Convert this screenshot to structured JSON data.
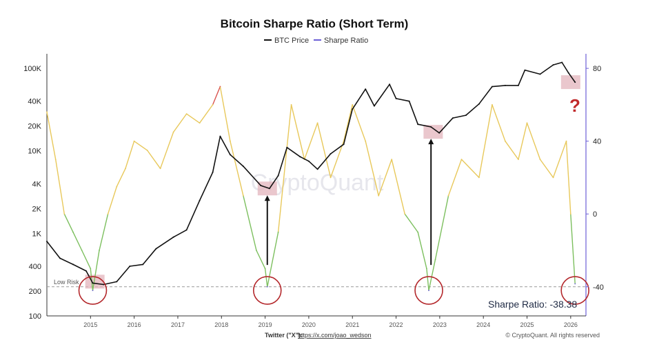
{
  "header": {
    "title": "Bitcoin Sharpe Ratio (Short Term)",
    "legend": [
      {
        "label": "BTC Price",
        "color": "#111111"
      },
      {
        "label": "Sharpe Ratio",
        "color": "#6b5fd6"
      }
    ]
  },
  "footer": {
    "twitter_label": "Twitter (\"X\"):",
    "twitter_link": "https://x.com/joao_wedson",
    "copyright": "© CryptoQuant. All rights reserved"
  },
  "annotations": {
    "watermark": "CryptoQuant",
    "low_risk_label": "Low Risk",
    "readout": "Sharpe Ratio: -38.38",
    "question_mark": "?"
  },
  "colors": {
    "price": "#111111",
    "sharpe_high": "#d9534f",
    "sharpe_mid": "#e8c85a",
    "sharpe_low": "#7cbf5e",
    "sharpe_extreme": "#6b5fd6",
    "highlight_box": "#e3b4bc",
    "circle": "#b3262a",
    "right_axis": "#6b5fd6"
  },
  "chart_data": {
    "type": "line",
    "x_ticks": [
      "2015",
      "2016",
      "2017",
      "2018",
      "2019",
      "2020",
      "2021",
      "2022",
      "2023",
      "2024",
      "2025",
      "2026"
    ],
    "y_left": {
      "scale": "log",
      "ticks": [
        100,
        200,
        400,
        1000,
        2000,
        4000,
        10000,
        20000,
        40000,
        100000
      ],
      "tick_labels": [
        "100",
        "200",
        "400",
        "1K",
        "2K",
        "4K",
        "10K",
        "20K",
        "40K",
        "100K"
      ],
      "ylim": [
        100,
        150000
      ]
    },
    "y_right": {
      "ticks": [
        80,
        40,
        0,
        -40
      ],
      "ylim": [
        -56,
        88
      ]
    },
    "low_risk_level": -40,
    "series": [
      {
        "name": "BTC Price",
        "axis": "left",
        "x": [
          2014.0,
          2014.3,
          2014.6,
          2014.9,
          2015.05,
          2015.3,
          2015.6,
          2015.9,
          2016.2,
          2016.5,
          2016.9,
          2017.2,
          2017.5,
          2017.8,
          2017.97,
          2018.2,
          2018.5,
          2018.9,
          2019.1,
          2019.3,
          2019.5,
          2019.8,
          2020.0,
          2020.2,
          2020.5,
          2020.8,
          2021.0,
          2021.3,
          2021.5,
          2021.85,
          2022.0,
          2022.3,
          2022.5,
          2022.8,
          2022.99,
          2023.3,
          2023.6,
          2023.9,
          2024.2,
          2024.5,
          2024.8,
          2024.95,
          2025.3,
          2025.6,
          2025.8,
          2025.95,
          2026.1
        ],
        "y": [
          800,
          500,
          420,
          350,
          250,
          240,
          260,
          400,
          420,
          650,
          900,
          1100,
          2500,
          5500,
          15000,
          9000,
          6500,
          3800,
          3500,
          5000,
          11000,
          8500,
          7500,
          6000,
          9200,
          12000,
          32000,
          56000,
          35000,
          64000,
          43000,
          40000,
          21000,
          19500,
          16500,
          25000,
          27000,
          37000,
          60000,
          62000,
          62000,
          95000,
          85000,
          110000,
          118000,
          88000,
          68000
        ]
      },
      {
        "name": "Sharpe Ratio",
        "axis": "right",
        "x": [
          2014.0,
          2014.2,
          2014.4,
          2014.6,
          2014.8,
          2015.0,
          2015.05,
          2015.2,
          2015.4,
          2015.6,
          2015.8,
          2016.0,
          2016.3,
          2016.6,
          2016.9,
          2017.2,
          2017.5,
          2017.8,
          2017.97,
          2018.2,
          2018.5,
          2018.8,
          2019.0,
          2019.05,
          2019.3,
          2019.6,
          2019.9,
          2020.2,
          2020.5,
          2020.8,
          2021.0,
          2021.3,
          2021.6,
          2021.9,
          2022.2,
          2022.5,
          2022.7,
          2022.75,
          2022.9,
          2023.2,
          2023.5,
          2023.9,
          2024.2,
          2024.5,
          2024.8,
          2025.0,
          2025.3,
          2025.6,
          2025.9,
          2026.0,
          2026.1
        ],
        "y": [
          56,
          30,
          0,
          -10,
          -20,
          -30,
          -42,
          -20,
          0,
          15,
          25,
          40,
          35,
          25,
          45,
          55,
          50,
          60,
          70,
          40,
          10,
          -20,
          -30,
          -40,
          -10,
          60,
          30,
          50,
          20,
          40,
          60,
          40,
          10,
          30,
          0,
          -10,
          -30,
          -42,
          -25,
          10,
          30,
          20,
          60,
          40,
          30,
          50,
          30,
          20,
          40,
          0,
          -38.38
        ]
      }
    ]
  }
}
